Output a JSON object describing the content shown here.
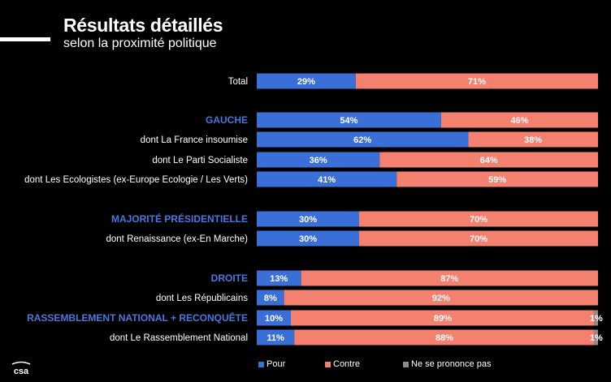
{
  "header": {
    "title": "Résultats détaillés",
    "subtitle": "selon la proximité politique"
  },
  "logo_text": "csa",
  "colors": {
    "pour": "#3b6fd8",
    "contre": "#f4806f",
    "nsp": "#8c8c8c",
    "group_label": "#4a78e0"
  },
  "chart_data": {
    "type": "bar",
    "orientation": "horizontal",
    "stacked": true,
    "xlim": [
      0,
      100
    ],
    "categories": [
      "Total",
      "GAUCHE",
      "dont La France insoumise",
      "dont Le Parti Socialiste",
      "dont Les Ecologistes (ex-Europe Ecologie / Les Verts)",
      "MAJORITÉ PRÉSIDENTIELLE",
      "dont Renaissance (ex-En Marche)",
      "DROITE",
      "dont Les Républicains",
      "RASSEMBLEMENT NATIONAL + RECONQUÊTE",
      "dont Le Rassemblement National"
    ],
    "group_header": [
      false,
      true,
      false,
      false,
      false,
      true,
      false,
      true,
      false,
      true,
      false
    ],
    "series": [
      {
        "name": "Pour",
        "values": [
          29,
          54,
          62,
          36,
          41,
          30,
          30,
          13,
          8,
          10,
          11
        ]
      },
      {
        "name": "Contre",
        "values": [
          71,
          46,
          38,
          64,
          59,
          70,
          70,
          87,
          92,
          89,
          88
        ]
      },
      {
        "name": "Ne se prononce pas",
        "values": [
          0,
          0,
          0,
          0,
          0,
          0,
          0,
          0,
          0,
          1,
          1
        ]
      }
    ],
    "legend_position": "bottom",
    "grid": false
  }
}
